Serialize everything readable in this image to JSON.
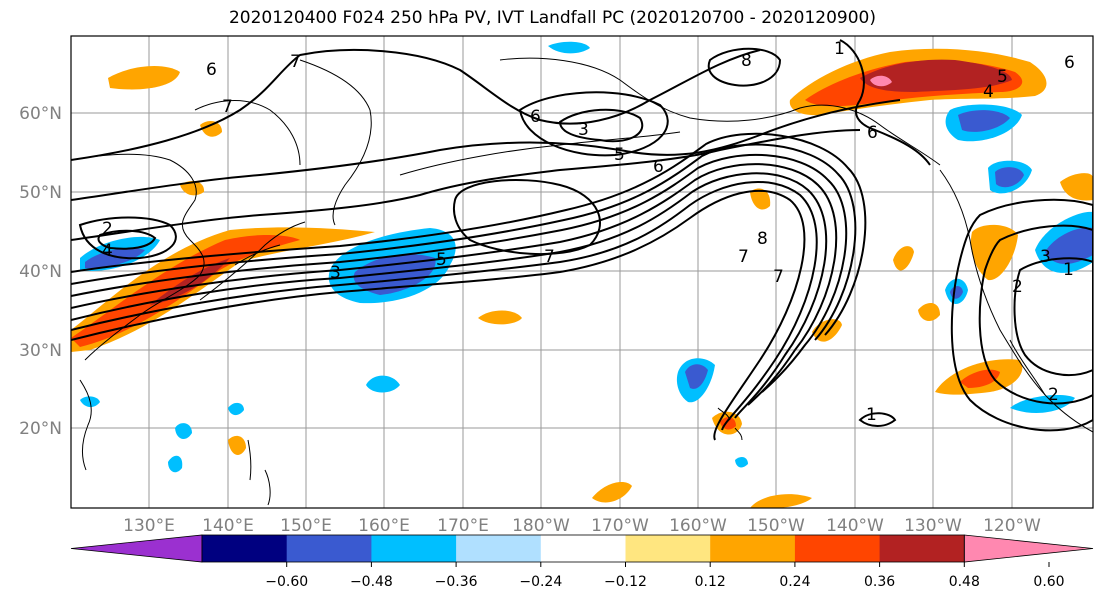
{
  "title": "2020120400 F024 250 hPa PV, IVT Landfall PC (2020120700 - 2020120900)",
  "map": {
    "lon_labels": [
      "130°E",
      "140°E",
      "150°E",
      "160°E",
      "170°E",
      "180°W",
      "170°W",
      "160°W",
      "150°W",
      "140°W",
      "130°W",
      "120°W"
    ],
    "lat_labels": [
      "60°N",
      "50°N",
      "40°N",
      "30°N",
      "20°N"
    ],
    "contour_labels": [
      "6",
      "7",
      "7",
      "6",
      "3",
      "5",
      "6",
      "7",
      "2",
      "4",
      "3",
      "5",
      "7",
      "8",
      "8",
      "7",
      "1",
      "6",
      "5",
      "4",
      "6",
      "3",
      "2",
      "1",
      "2",
      "1"
    ]
  },
  "colorbar": {
    "tick_labels": [
      "-0.60",
      "-0.48",
      "-0.36",
      "-0.24",
      "-0.12",
      "0.12",
      "0.24",
      "0.36",
      "0.48",
      "0.60"
    ],
    "colors": [
      "#9b30d0",
      "#000080",
      "#3a5ad0",
      "#00bfff",
      "#b0e0ff",
      "#ffffff",
      "#ffe680",
      "#ffa500",
      "#ff4500",
      "#b22222",
      "#ff88b0"
    ]
  }
}
